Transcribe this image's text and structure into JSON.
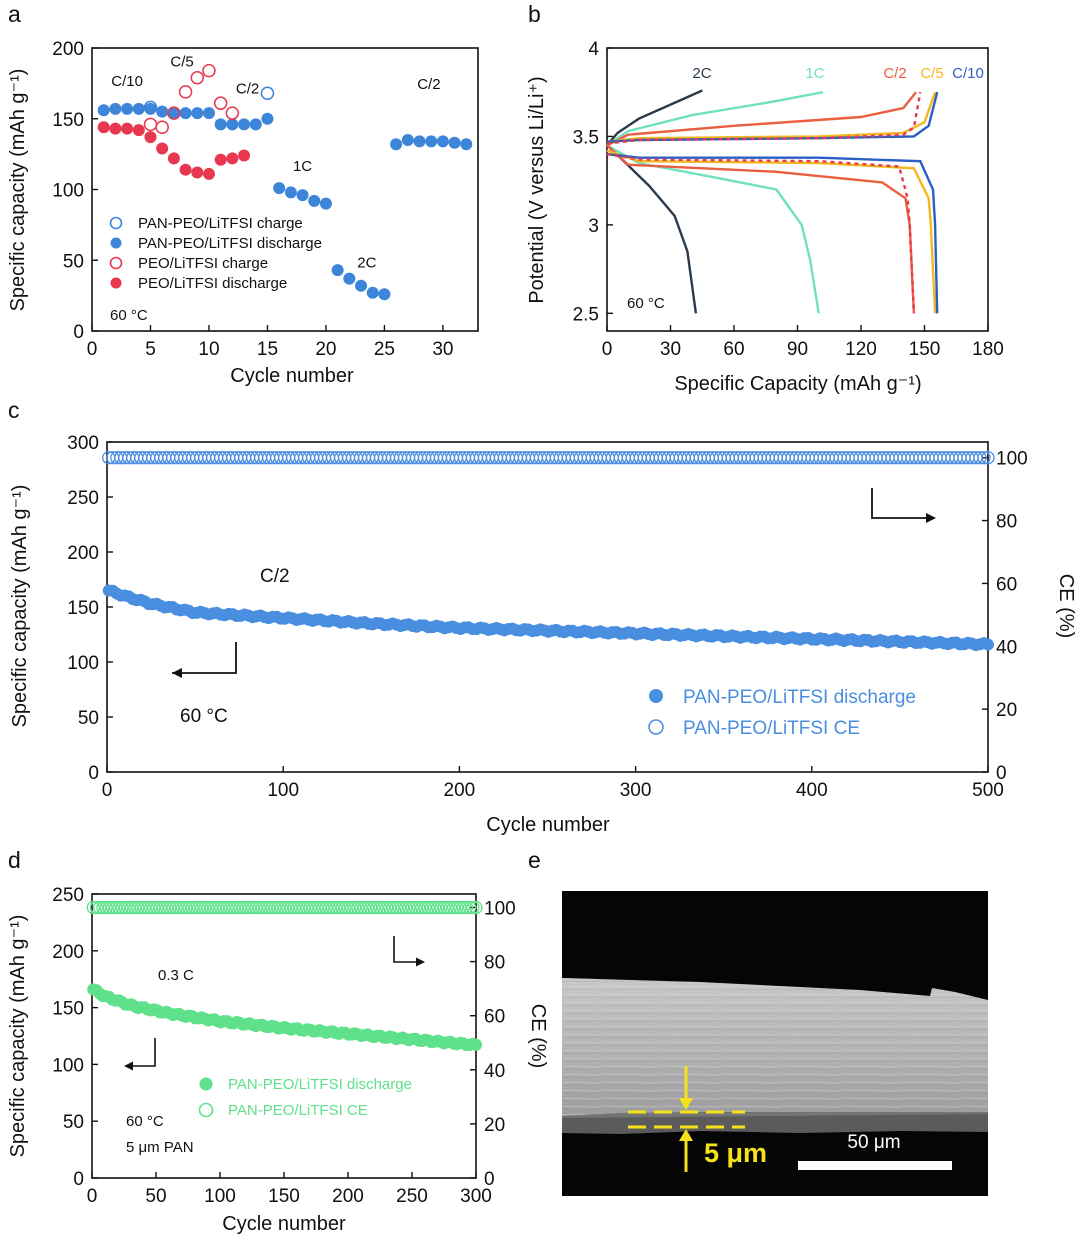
{
  "chart_data": [
    {
      "panel": "a",
      "type": "scatter",
      "xlabel": "Cycle number",
      "ylabel": "Specific capacity (mAh g⁻¹)",
      "xlim": [
        0,
        33
      ],
      "ylim": [
        0,
        200
      ],
      "xticks": [
        0,
        5,
        10,
        15,
        20,
        25,
        30
      ],
      "yticks": [
        0,
        50,
        100,
        150,
        200
      ],
      "temperature": "60 °C",
      "colors": {
        "pan": "#3c85d8",
        "peo": "#e8384f"
      },
      "legend": [
        "PAN-PEO/LiTFSI charge",
        "PAN-PEO/LiTFSI discharge",
        "PEO/LiTFSI charge",
        "PEO/LiTFSI discharge"
      ],
      "rate_labels": [
        {
          "text": "C/10",
          "x": 3,
          "y": 173
        },
        {
          "text": "C/5",
          "x": 7.7,
          "y": 187
        },
        {
          "text": "C/2",
          "x": 13.3,
          "y": 168
        },
        {
          "text": "1C",
          "x": 18,
          "y": 113
        },
        {
          "text": "2C",
          "x": 23.5,
          "y": 45
        },
        {
          "text": "C/2",
          "x": 28.8,
          "y": 171
        }
      ],
      "series": [
        {
          "name": "PAN-PEO/LiTFSI charge",
          "style": "open",
          "color": "#3c85d8",
          "x": [
            5,
            15
          ],
          "y": [
            158,
            168
          ]
        },
        {
          "name": "PAN-PEO/LiTFSI discharge",
          "style": "filled",
          "color": "#3c85d8",
          "x": [
            1,
            2,
            3,
            4,
            5,
            6,
            7,
            8,
            9,
            10,
            11,
            12,
            13,
            14,
            15,
            16,
            17,
            18,
            19,
            20,
            21,
            22,
            23,
            24,
            25,
            26,
            27,
            28,
            29,
            30,
            31,
            32
          ],
          "y": [
            156,
            157,
            157,
            157,
            157,
            155,
            154,
            154,
            154,
            154,
            146,
            146,
            146,
            146,
            150,
            101,
            98,
            96,
            92,
            90,
            43,
            37,
            32,
            27,
            26,
            132,
            135,
            134,
            134,
            134,
            133,
            132
          ]
        },
        {
          "name": "PEO/LiTFSI charge",
          "style": "open",
          "color": "#e8384f",
          "x": [
            5,
            6,
            7,
            8,
            9,
            10,
            11,
            12
          ],
          "y": [
            146,
            144,
            154,
            169,
            179,
            184,
            161,
            154
          ]
        },
        {
          "name": "PEO/LiTFSI discharge",
          "style": "filled",
          "color": "#e8384f",
          "x": [
            1,
            2,
            3,
            4,
            5,
            6,
            7,
            8,
            9,
            10,
            11,
            12,
            13
          ],
          "y": [
            144,
            143,
            143,
            142,
            137,
            129,
            122,
            114,
            112,
            111,
            121,
            122,
            124
          ]
        }
      ]
    },
    {
      "panel": "b",
      "type": "line",
      "xlabel": "Specific Capacity (mAh g⁻¹)",
      "ylabel": "Potential (V versus Li/Li⁺)",
      "xlim": [
        0,
        180
      ],
      "ylim": [
        2.4,
        4.0
      ],
      "xticks": [
        0,
        30,
        60,
        90,
        120,
        150,
        180
      ],
      "yticks": [
        2.5,
        3.0,
        3.5,
        4.0
      ],
      "temperature": "60 °C",
      "legend": [
        {
          "text": "2C",
          "color": "#2a3a4a"
        },
        {
          "text": "1C",
          "color": "#70e0bf"
        },
        {
          "text": "C/2",
          "color": "#ea5f3f"
        },
        {
          "text": "C/5",
          "color": "#f2b81e"
        },
        {
          "text": "C/10",
          "color": "#2c5fc4"
        }
      ],
      "curves": [
        {
          "rate": "2C",
          "color": "#2a3a4a",
          "dash": false,
          "charge": [
            [
              0,
              3.45
            ],
            [
              5,
              3.52
            ],
            [
              15,
              3.6
            ],
            [
              30,
              3.68
            ],
            [
              45,
              3.76
            ]
          ],
          "discharge": [
            [
              0,
              3.45
            ],
            [
              8,
              3.36
            ],
            [
              20,
              3.22
            ],
            [
              32,
              3.05
            ],
            [
              38,
              2.85
            ],
            [
              42,
              2.5
            ]
          ]
        },
        {
          "rate": "1C",
          "color": "#70e0bf",
          "dash": false,
          "charge": [
            [
              0,
              3.45
            ],
            [
              10,
              3.53
            ],
            [
              40,
              3.62
            ],
            [
              80,
              3.7
            ],
            [
              102,
              3.75
            ]
          ],
          "discharge": [
            [
              0,
              3.45
            ],
            [
              15,
              3.35
            ],
            [
              50,
              3.27
            ],
            [
              80,
              3.2
            ],
            [
              92,
              3.0
            ],
            [
              96,
              2.8
            ],
            [
              100,
              2.5
            ]
          ]
        },
        {
          "rate": "C/2",
          "color": "#ea5f3f",
          "dash": false,
          "charge": [
            [
              0,
              3.45
            ],
            [
              10,
              3.51
            ],
            [
              60,
              3.56
            ],
            [
              120,
              3.61
            ],
            [
              140,
              3.66
            ],
            [
              146,
              3.75
            ]
          ],
          "discharge": [
            [
              0,
              3.45
            ],
            [
              10,
              3.34
            ],
            [
              80,
              3.3
            ],
            [
              130,
              3.24
            ],
            [
              141,
              3.15
            ],
            [
              143,
              3.0
            ],
            [
              145,
              2.5
            ]
          ]
        },
        {
          "rate": "C/5",
          "color": "#f2b81e",
          "dash": false,
          "charge": [
            [
              0,
              3.47
            ],
            [
              15,
              3.49
            ],
            [
              100,
              3.5
            ],
            [
              140,
              3.52
            ],
            [
              150,
              3.58
            ],
            [
              155,
              3.75
            ]
          ],
          "discharge": [
            [
              0,
              3.42
            ],
            [
              15,
              3.36
            ],
            [
              100,
              3.35
            ],
            [
              145,
              3.32
            ],
            [
              152,
              3.15
            ],
            [
              153,
              3.0
            ],
            [
              155,
              2.5
            ]
          ]
        },
        {
          "rate": "C/10",
          "color": "#2c5fc4",
          "dash": false,
          "charge": [
            [
              0,
              3.47
            ],
            [
              15,
              3.48
            ],
            [
              100,
              3.49
            ],
            [
              145,
              3.5
            ],
            [
              152,
              3.56
            ],
            [
              156,
              3.75
            ]
          ],
          "discharge": [
            [
              0,
              3.4
            ],
            [
              15,
              3.38
            ],
            [
              100,
              3.38
            ],
            [
              148,
              3.36
            ],
            [
              154,
              3.2
            ],
            [
              155,
              3.0
            ],
            [
              156,
              2.5
            ]
          ]
        },
        {
          "rate": "C/2 (PEO)",
          "color": "#e8384f",
          "dash": true,
          "charge": [
            [
              0,
              3.46
            ],
            [
              15,
              3.48
            ],
            [
              100,
              3.49
            ],
            [
              140,
              3.51
            ],
            [
              145,
              3.55
            ],
            [
              148,
              3.75
            ]
          ],
          "discharge": [
            [
              0,
              3.4
            ],
            [
              15,
              3.37
            ],
            [
              100,
              3.36
            ],
            [
              138,
              3.33
            ],
            [
              142,
              3.15
            ],
            [
              143,
              3.0
            ],
            [
              145,
              2.5
            ]
          ]
        }
      ]
    },
    {
      "panel": "c",
      "type": "scatter",
      "xlabel": "Cycle number",
      "ylabel": "Specific capacity (mAh g⁻¹)",
      "y2label": "CE (%)",
      "xlim": [
        0,
        500
      ],
      "ylim": [
        0,
        300
      ],
      "y2lim": [
        0,
        105
      ],
      "xticks": [
        0,
        100,
        200,
        300,
        400,
        500
      ],
      "yticks": [
        0,
        50,
        100,
        150,
        200,
        250,
        300
      ],
      "y2ticks": [
        0,
        20,
        40,
        60,
        80,
        100
      ],
      "rate": "C/2",
      "temperature": "60 °C",
      "color": "#4a8ee0",
      "legend": [
        "PAN-PEO/LiTFSI discharge",
        "PAN-PEO/LiTFSI CE"
      ],
      "discharge": {
        "x": [
          1,
          10,
          25,
          50,
          100,
          150,
          200,
          300,
          400,
          500
        ],
        "y": [
          165,
          160,
          153,
          145,
          140,
          135,
          131,
          126,
          121,
          116
        ]
      },
      "ce": {
        "value": 100
      }
    },
    {
      "panel": "d",
      "type": "scatter",
      "xlabel": "Cycle number",
      "ylabel": "Specific capacity (mAh g⁻¹)",
      "y2label": "CE (%)",
      "xlim": [
        0,
        300
      ],
      "ylim": [
        0,
        250
      ],
      "y2lim": [
        0,
        105
      ],
      "xticks": [
        0,
        50,
        100,
        150,
        200,
        250,
        300
      ],
      "yticks": [
        0,
        50,
        100,
        150,
        200,
        250
      ],
      "y2ticks": [
        0,
        20,
        40,
        60,
        80,
        100
      ],
      "rate": "0.3 C",
      "temperature": "60 °C",
      "thickness_note": "5 μm PAN",
      "color": "#5fe08a",
      "legend": [
        "PAN-PEO/LiTFSI discharge",
        "PAN-PEO/LiTFSI CE"
      ],
      "discharge": {
        "x": [
          1,
          10,
          30,
          60,
          100,
          150,
          200,
          250,
          300
        ],
        "y": [
          166,
          160,
          152,
          145,
          138,
          132,
          127,
          122,
          117
        ]
      },
      "ce": {
        "value": 100
      }
    }
  ],
  "panel_e": {
    "letter": "e",
    "scale_label": "50 μm",
    "thickness_label": "5 μm"
  },
  "labels": {
    "a": "a",
    "b": "b",
    "c": "c",
    "d": "d",
    "a_ylabel": "Specific capacity (mAh g⁻¹)",
    "a_xlabel": "Cycle number",
    "b_ylabel": "Potential (V versus Li/Li⁺)",
    "b_xlabel": "Specific Capacity (mAh g⁻¹)",
    "c_ylabel": "Specific capacity (mAh g⁻¹)",
    "c_xlabel": "Cycle number",
    "c_y2label": "CE (%)",
    "d_ylabel": "Specific capacity (mAh g⁻¹)",
    "d_xlabel": "Cycle number",
    "d_y2label": "CE (%)",
    "a_temp": "60 °C",
    "b_temp": "60 °C",
    "c_temp": "60 °C",
    "c_rate": "C/2",
    "d_temp": "60 °C",
    "d_rate": "0.3 C",
    "d_note": "5 μm PAN",
    "c_legend_1": "PAN-PEO/LiTFSI discharge",
    "c_legend_2": "PAN-PEO/LiTFSI CE",
    "d_legend_1": "PAN-PEO/LiTFSI discharge",
    "d_legend_2": "PAN-PEO/LiTFSI CE",
    "a_legend_1": "PAN-PEO/LiTFSI charge",
    "a_legend_2": "PAN-PEO/LiTFSI discharge",
    "a_legend_3": "PEO/LiTFSI charge",
    "a_legend_4": "PEO/LiTFSI discharge"
  }
}
